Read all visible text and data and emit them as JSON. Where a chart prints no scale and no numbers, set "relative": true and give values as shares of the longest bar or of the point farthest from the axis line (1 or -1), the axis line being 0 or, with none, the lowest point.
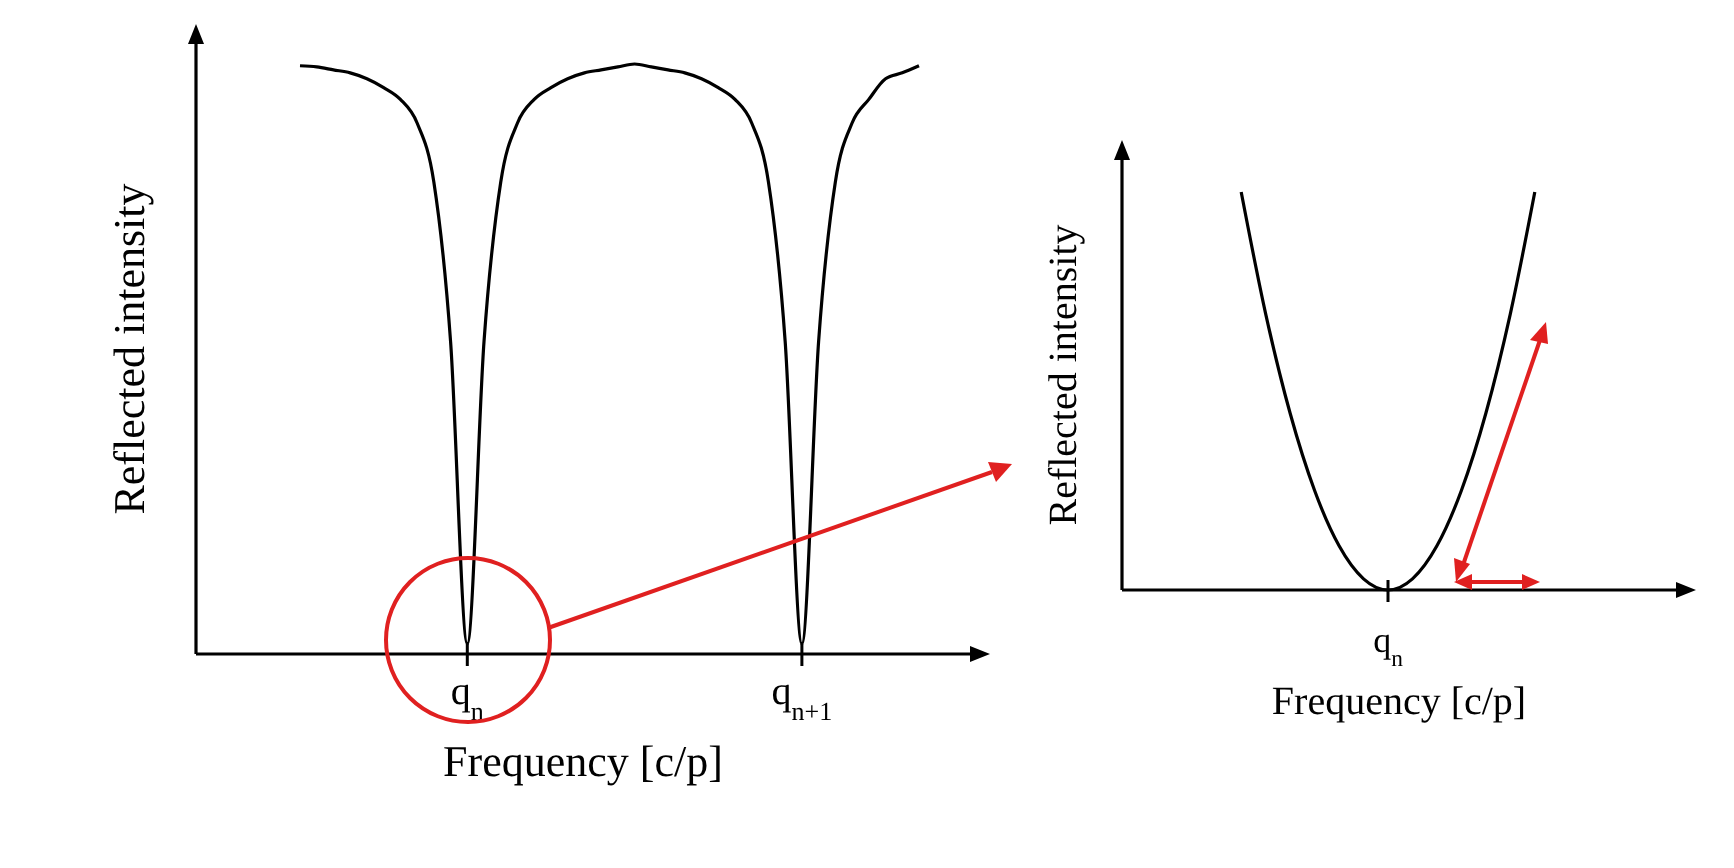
{
  "chart_data": [
    {
      "type": "line",
      "relative": true,
      "xlabel": "Frequency [c/p]",
      "ylabel": "Reflected intensity",
      "grid": false,
      "marker": "none",
      "line_style": "solid",
      "categories": [
        null,
        null,
        null,
        null,
        null,
        null,
        null,
        null,
        null,
        null,
        "q$_{n}$",
        null,
        null,
        null,
        null,
        null,
        null,
        null,
        null,
        null,
        null,
        null,
        null,
        null,
        null,
        null,
        null,
        null,
        null,
        null,
        "q$_{n+1}$",
        null,
        null,
        null,
        null,
        null,
        null,
        null
      ],
      "series": [
        {
          "color": "#000000",
          "values": [
            0.997,
            0.995,
            0.99,
            0.985,
            0.975,
            0.96,
            0.94,
            0.9,
            0.8,
            0.53,
            0.017,
            0.53,
            0.8,
            0.9,
            0.94,
            0.96,
            0.975,
            0.985,
            0.99,
            0.995,
            1.0,
            0.995,
            0.99,
            0.985,
            0.975,
            0.96,
            0.94,
            0.9,
            0.8,
            0.53,
            0.017,
            0.53,
            0.8,
            0.9,
            0.94,
            0.975,
            0.985,
            0.997
          ]
        }
      ]
    },
    {
      "type": "line",
      "relative": true,
      "xlabel": "Frequency [c/p]",
      "ylabel": "Reflected intensity",
      "grid": false,
      "marker": "none",
      "line_style": "solid",
      "categories": [
        null,
        null,
        null,
        null,
        null,
        null,
        null,
        null,
        null,
        null,
        null,
        null,
        null
      ],
      "annotations": [
        "q$_{n}$"
      ],
      "series": [
        {
          "color": "#000000",
          "values": [
            1.0,
            0.694,
            0.444,
            0.25,
            0.111,
            0.028,
            0,
            0.028,
            0.111,
            0.25,
            0.444,
            0.694,
            1.0
          ]
        }
      ]
    }
  ]
}
